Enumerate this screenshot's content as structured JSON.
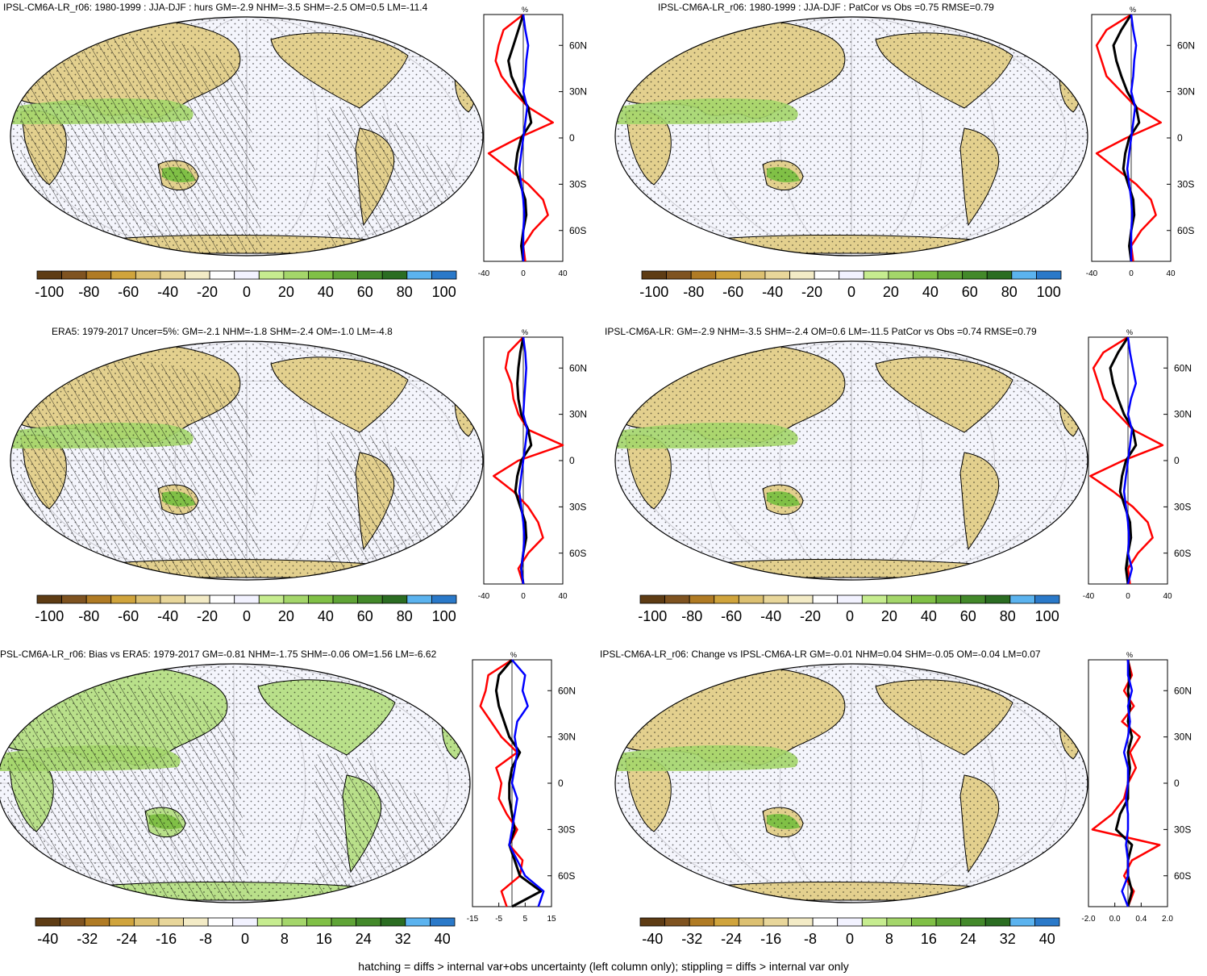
{
  "panels": [
    {
      "id": "p1",
      "title": "IPSL-CM6A-LR_r06: 1980-1999 : JJA-DJF : hurs GM=-2.9 NHM=-3.5 SHM=-2.5 OM=0.5 LM=-11.4",
      "hatched": true,
      "colorbar_labels": [
        "-100",
        "-80",
        "-60",
        "-40",
        "-20",
        "0",
        "20",
        "40",
        "60",
        "80",
        "100"
      ],
      "profile": {
        "unit": "%",
        "xticks": [
          "-40",
          "0",
          "40"
        ],
        "xlim": [
          -40,
          40
        ],
        "lat_labels": [
          "60N",
          "30N",
          "0",
          "30S",
          "60S"
        ],
        "series": [
          {
            "color": "#ff0000",
            "lat": [
              80,
              70,
              60,
              50,
              40,
              30,
              20,
              10,
              0,
              -10,
              -20,
              -30,
              -40,
              -50,
              -60,
              -70,
              -80
            ],
            "values": [
              0,
              -20,
              -25,
              -28,
              -22,
              -10,
              5,
              30,
              -5,
              -35,
              -15,
              5,
              20,
              25,
              10,
              0,
              2
            ]
          },
          {
            "color": "#000000",
            "lat": [
              80,
              70,
              60,
              50,
              40,
              30,
              20,
              10,
              0,
              -10,
              -20,
              -30,
              -40,
              -50,
              -60,
              -70,
              -80
            ],
            "values": [
              0,
              -5,
              -10,
              -15,
              -12,
              -5,
              5,
              8,
              -2,
              -6,
              -8,
              -3,
              2,
              3,
              0,
              -2,
              0
            ]
          },
          {
            "color": "#0000ff",
            "lat": [
              80,
              70,
              60,
              50,
              40,
              30,
              20,
              10,
              0,
              -10,
              -20,
              -30,
              -40,
              -50,
              -60,
              -70,
              -80
            ],
            "values": [
              0,
              2,
              5,
              3,
              2,
              0,
              4,
              2,
              0,
              -2,
              -4,
              -2,
              0,
              1,
              0,
              0,
              0
            ]
          }
        ]
      }
    },
    {
      "id": "p2",
      "title": "IPSL-CM6A-LR_r06: 1980-1999 : JJA-DJF : PatCor vs Obs =0.75 RMSE=0.79",
      "hatched": false,
      "colorbar_labels": [
        "-100",
        "-80",
        "-60",
        "-40",
        "-20",
        "0",
        "20",
        "40",
        "60",
        "80",
        "100"
      ],
      "profile": {
        "unit": "%",
        "xticks": [
          "-40",
          "0",
          "40"
        ],
        "xlim": [
          -40,
          40
        ],
        "lat_labels": [
          "60N",
          "30N",
          "0",
          "30S",
          "60S"
        ],
        "series": [
          {
            "color": "#ff0000",
            "lat": [
              80,
              70,
              60,
              50,
              40,
              30,
              20,
              10,
              0,
              -10,
              -20,
              -30,
              -40,
              -50,
              -60,
              -70,
              -80
            ],
            "values": [
              0,
              -25,
              -35,
              -30,
              -25,
              -10,
              5,
              30,
              -5,
              -35,
              -15,
              5,
              20,
              25,
              10,
              0,
              2
            ]
          },
          {
            "color": "#000000",
            "lat": [
              80,
              70,
              60,
              50,
              40,
              30,
              20,
              10,
              0,
              -10,
              -20,
              -30,
              -40,
              -50,
              -60,
              -70,
              -80
            ],
            "values": [
              0,
              -10,
              -18,
              -15,
              -10,
              -4,
              5,
              8,
              -2,
              -6,
              -8,
              -3,
              2,
              3,
              0,
              -2,
              0
            ]
          },
          {
            "color": "#0000ff",
            "lat": [
              80,
              70,
              60,
              50,
              40,
              30,
              20,
              10,
              0,
              -10,
              -20,
              -30,
              -40,
              -50,
              -60,
              -70,
              -80
            ],
            "values": [
              0,
              2,
              5,
              3,
              2,
              0,
              4,
              2,
              0,
              -2,
              -4,
              -2,
              0,
              1,
              0,
              0,
              0
            ]
          }
        ]
      }
    },
    {
      "id": "p3",
      "title": "ERA5: 1979-2017 Uncer=5%: GM=-2.1 NHM=-1.8 SHM=-2.4 OM=-1.0 LM=-4.8",
      "hatched": true,
      "colorbar_labels": [
        "-100",
        "-80",
        "-60",
        "-40",
        "-20",
        "0",
        "20",
        "40",
        "60",
        "80",
        "100"
      ],
      "profile": {
        "unit": "%",
        "xticks": [
          "-40",
          "0",
          "40"
        ],
        "xlim": [
          -40,
          40
        ],
        "lat_labels": [
          "60N",
          "30N",
          "0",
          "30S",
          "60S"
        ],
        "series": [
          {
            "color": "#ff0000",
            "lat": [
              80,
              70,
              60,
              50,
              40,
              30,
              20,
              10,
              0,
              -10,
              -20,
              -30,
              -40,
              -50,
              -60,
              -70,
              -80
            ],
            "values": [
              0,
              -15,
              -18,
              -12,
              -10,
              -5,
              5,
              40,
              -5,
              -30,
              -10,
              5,
              15,
              20,
              5,
              -5,
              0
            ]
          },
          {
            "color": "#000000",
            "lat": [
              80,
              70,
              60,
              50,
              40,
              30,
              20,
              10,
              0,
              -10,
              -20,
              -30,
              -40,
              -50,
              -60,
              -70,
              -80
            ],
            "values": [
              0,
              -3,
              -5,
              -6,
              -5,
              -2,
              5,
              8,
              -2,
              -6,
              -8,
              -3,
              2,
              3,
              0,
              -2,
              0
            ]
          },
          {
            "color": "#0000ff",
            "lat": [
              80,
              70,
              60,
              50,
              40,
              30,
              20,
              10,
              0,
              -10,
              -20,
              -30,
              -40,
              -50,
              -60,
              -70,
              -80
            ],
            "values": [
              0,
              2,
              3,
              2,
              1,
              0,
              4,
              2,
              0,
              -2,
              -4,
              -2,
              0,
              1,
              0,
              -2,
              0
            ]
          }
        ]
      }
    },
    {
      "id": "p4",
      "title": "IPSL-CM6A-LR: GM=-2.9 NHM=-3.5 SHM=-2.4 OM=0.6 LM=-11.5 PatCor vs Obs =0.74 RMSE=0.79",
      "hatched": false,
      "colorbar_labels": [
        "-100",
        "-80",
        "-60",
        "-40",
        "-20",
        "0",
        "20",
        "40",
        "60",
        "80",
        "100"
      ],
      "profile": {
        "unit": "%",
        "xticks": [
          "-40",
          "0",
          "40"
        ],
        "xlim": [
          -40,
          40
        ],
        "lat_labels": [
          "60N",
          "30N",
          "0",
          "30S",
          "60S"
        ],
        "series": [
          {
            "color": "#ff0000",
            "lat": [
              80,
              70,
              60,
              50,
              40,
              30,
              20,
              10,
              0,
              -10,
              -20,
              -30,
              -40,
              -50,
              -60,
              -70,
              -80
            ],
            "values": [
              0,
              -25,
              -35,
              -30,
              -25,
              -10,
              5,
              35,
              -5,
              -38,
              -15,
              5,
              20,
              25,
              10,
              0,
              2
            ]
          },
          {
            "color": "#000000",
            "lat": [
              80,
              70,
              60,
              50,
              40,
              30,
              20,
              10,
              0,
              -10,
              -20,
              -30,
              -40,
              -50,
              -60,
              -70,
              -80
            ],
            "values": [
              0,
              -10,
              -18,
              -15,
              -10,
              -4,
              5,
              8,
              -2,
              -6,
              -8,
              -3,
              2,
              3,
              0,
              -2,
              0
            ]
          },
          {
            "color": "#0000ff",
            "lat": [
              80,
              70,
              60,
              50,
              40,
              30,
              20,
              10,
              0,
              -10,
              -20,
              -30,
              -40,
              -50,
              -60,
              -70,
              -80
            ],
            "values": [
              0,
              2,
              5,
              8,
              3,
              0,
              4,
              2,
              0,
              -2,
              -4,
              -2,
              0,
              1,
              0,
              4,
              0
            ]
          }
        ]
      }
    },
    {
      "id": "p5",
      "title": "PSL-CM6A-LR_r06: Bias vs ERA5: 1979-2017 GM=-0.81 NHM=-1.75 SHM=-0.06 OM=1.56 LM=-6.62",
      "hatched": true,
      "colorbar_labels": [
        "-40",
        "-32",
        "-24",
        "-16",
        "-8",
        "0",
        "8",
        "16",
        "24",
        "32",
        "40"
      ],
      "profile": {
        "unit": "%",
        "xticks": [
          "-15",
          "-5",
          "5",
          "15"
        ],
        "xlim": [
          -15,
          15
        ],
        "lat_labels": [
          "60N",
          "30N",
          "0",
          "30S",
          "60S"
        ],
        "series": [
          {
            "color": "#ff0000",
            "lat": [
              80,
              70,
              60,
              50,
              40,
              30,
              20,
              10,
              0,
              -10,
              -20,
              -30,
              -40,
              -50,
              -60,
              -70,
              -80
            ],
            "values": [
              0,
              -9,
              -10,
              -12,
              -8,
              -4,
              2,
              -6,
              -4,
              -5,
              -2,
              2,
              -1,
              4,
              3,
              -4,
              -2
            ]
          },
          {
            "color": "#000000",
            "lat": [
              80,
              70,
              60,
              50,
              40,
              30,
              20,
              10,
              0,
              -10,
              -20,
              -30,
              -40,
              -50,
              -60,
              -70,
              -80
            ],
            "values": [
              0,
              -5,
              -6,
              -5,
              -3,
              -1,
              3,
              0,
              -1,
              -1,
              0,
              1,
              -1,
              1,
              3,
              11,
              0
            ]
          },
          {
            "color": "#0000ff",
            "lat": [
              80,
              70,
              60,
              50,
              40,
              30,
              20,
              10,
              0,
              -10,
              -20,
              -30,
              -40,
              -50,
              -60,
              -70,
              -80
            ],
            "values": [
              0,
              5,
              4,
              6,
              2,
              1,
              2,
              1,
              0,
              2,
              1,
              0,
              -1,
              2,
              5,
              12,
              10
            ]
          }
        ]
      }
    },
    {
      "id": "p6",
      "title": "IPSL-CM6A-LR_r06: Change vs IPSL-CM6A-LR GM=-0.01 NHM=0.04 SHM=-0.05 OM=-0.04 LM=0.07",
      "hatched": false,
      "colorbar_labels": [
        "-40",
        "-32",
        "-24",
        "-16",
        "-8",
        "0",
        "8",
        "16",
        "24",
        "32",
        "40"
      ],
      "profile": {
        "unit": "%",
        "xticks": [
          "-2.0",
          "0.0",
          "0.4",
          "2.0"
        ],
        "xlim": [
          -2.0,
          2.0
        ],
        "lat_labels": [
          "60N",
          "30N",
          "0",
          "30S",
          "60S"
        ],
        "series": [
          {
            "color": "#ff0000",
            "lat": [
              80,
              70,
              60,
              50,
              40,
              30,
              20,
              10,
              0,
              -10,
              -20,
              -30,
              -40,
              -50,
              -60,
              -70,
              -80
            ],
            "values": [
              0,
              0.2,
              -0.2,
              0.3,
              -0.3,
              0.6,
              0.1,
              0.4,
              0,
              -0.2,
              -0.8,
              -1.8,
              1.6,
              0.2,
              -0.2,
              0.3,
              0
            ]
          },
          {
            "color": "#000000",
            "lat": [
              80,
              70,
              60,
              50,
              40,
              30,
              20,
              10,
              0,
              -10,
              -20,
              -30,
              -40,
              -50,
              -60,
              -70,
              -80
            ],
            "values": [
              0,
              0.1,
              0,
              0.1,
              0,
              0.2,
              0,
              0.1,
              0,
              0,
              -0.4,
              -0.6,
              0.2,
              0,
              0,
              0.2,
              0
            ]
          },
          {
            "color": "#0000ff",
            "lat": [
              80,
              70,
              60,
              50,
              40,
              30,
              20,
              10,
              0,
              -10,
              -20,
              -30,
              -40,
              -50,
              -60,
              -70,
              -80
            ],
            "values": [
              0,
              0,
              0.2,
              0,
              0.1,
              0,
              -0.2,
              0,
              0,
              -0.1,
              0,
              0,
              -0.1,
              0,
              0,
              -0.3,
              0
            ]
          }
        ]
      }
    }
  ],
  "colors": {
    "palette": [
      "#5e3c14",
      "#7f5320",
      "#b07b24",
      "#d0a43c",
      "#dcc071",
      "#e8d69a",
      "#f3ebc6",
      "#ffffff",
      "#f2f2ff",
      "#c6ec8f",
      "#a4d66a",
      "#80c046",
      "#5fa436",
      "#43892a",
      "#2b6d22",
      "#5bb3ef",
      "#2a79c9"
    ],
    "ocean": "#f4f5fc",
    "land_dry": "#e3d08e",
    "land_wet": "#a4d66a"
  },
  "footer": "hatching = diffs > internal var+obs uncertainty (left column only); stippling = diffs > internal var only"
}
